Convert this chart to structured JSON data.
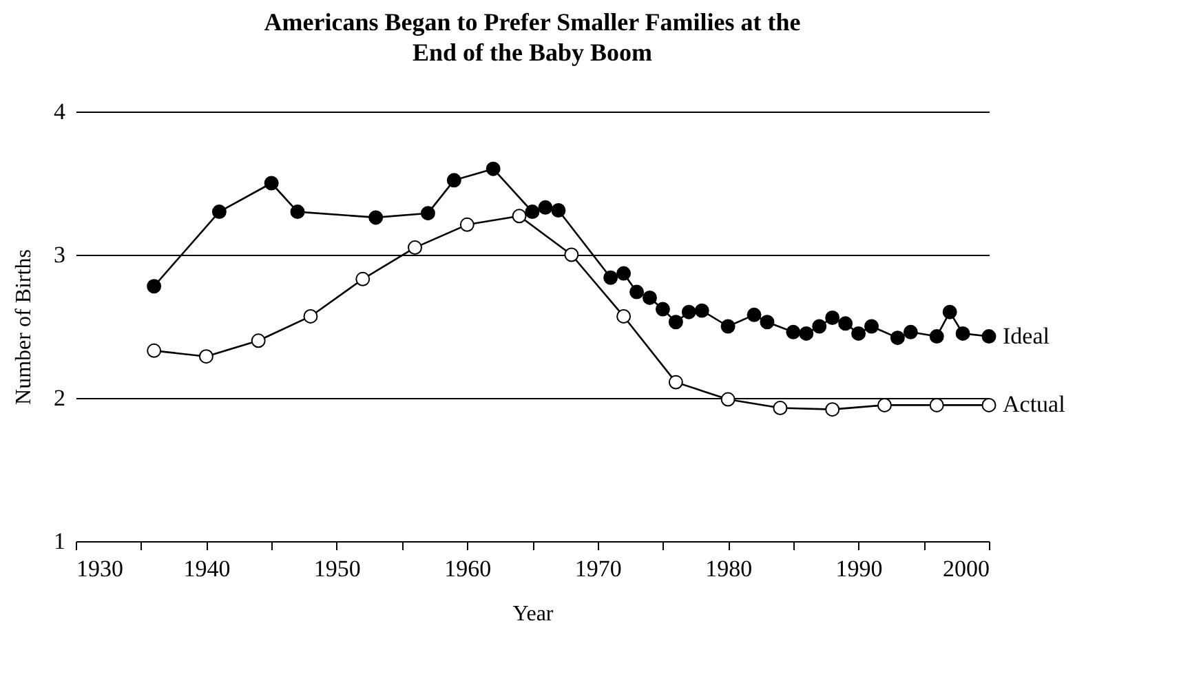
{
  "chart_data": {
    "type": "line",
    "title": "Americans Began to Prefer Smaller Families at the End of the Baby Boom",
    "xlabel": "Year",
    "ylabel": "Number of Births",
    "xlim": [
      1930,
      2000
    ],
    "xticks": [
      1930,
      {
        "value": 1935,
        "label": null
      },
      1940,
      {
        "value": 1945,
        "label": null
      },
      1950,
      {
        "value": 1955,
        "label": null
      },
      1960,
      {
        "value": 1965,
        "label": null
      },
      1970,
      {
        "value": 1975,
        "label": null
      },
      1980,
      {
        "value": 1985,
        "label": null
      },
      1990,
      {
        "value": 1995,
        "label": null
      },
      2000
    ],
    "ylim": [
      1,
      4
    ],
    "yticks": [
      1,
      2,
      3,
      4
    ],
    "grid": "y",
    "marker": "circle",
    "line_style": "solid",
    "series": [
      {
        "name": "Ideal",
        "color": "#000000",
        "x": [
          1936,
          1941,
          1945,
          1947,
          1953,
          1957,
          1959,
          1962,
          1965,
          1966,
          1967,
          1971,
          1972,
          1973,
          1974,
          1975,
          1976,
          1977,
          1978,
          1980,
          1982,
          1983,
          1985,
          1986,
          1987,
          1988,
          1989,
          1990,
          1991,
          1993,
          1994,
          1996,
          1997,
          1998,
          2000
        ],
        "values": [
          2.78,
          3.3,
          3.5,
          3.3,
          3.26,
          3.29,
          3.52,
          3.6,
          3.3,
          3.33,
          3.31,
          2.84,
          2.87,
          2.74,
          2.7,
          2.62,
          2.53,
          2.6,
          2.61,
          2.5,
          2.58,
          2.53,
          2.46,
          2.45,
          2.5,
          2.56,
          2.52,
          2.45,
          2.5,
          2.42,
          2.46,
          2.43,
          2.6,
          2.45,
          2.43
        ]
      },
      {
        "name": "Actual",
        "color": "#000000",
        "x": [
          1936,
          1940,
          1944,
          1948,
          1952,
          1956,
          1960,
          1964,
          1968,
          1972,
          1976,
          1980,
          1984,
          1988,
          1992,
          1996,
          2000
        ],
        "values": [
          2.33,
          2.29,
          2.4,
          2.57,
          2.83,
          3.05,
          3.21,
          3.27,
          3.0,
          2.57,
          2.11,
          1.99,
          1.93,
          1.92,
          1.95,
          1.95,
          1.95
        ]
      }
    ]
  }
}
